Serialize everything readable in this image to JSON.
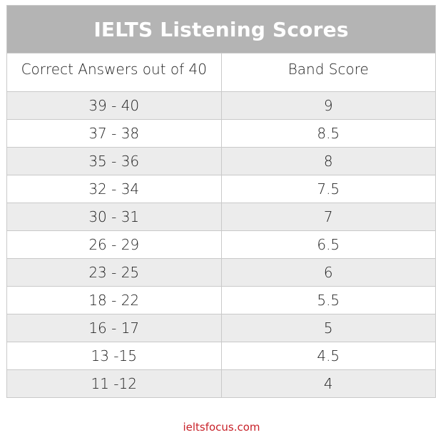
{
  "title": "IELTS Listening Scores",
  "columns": [
    "Correct Answers out of 40",
    "Band Score"
  ],
  "rows": [
    {
      "answers": "39 - 40",
      "band": "9"
    },
    {
      "answers": "37 - 38",
      "band": "8.5"
    },
    {
      "answers": "35 - 36",
      "band": "8"
    },
    {
      "answers": "32 - 34",
      "band": "7.5"
    },
    {
      "answers": "30 - 31",
      "band": "7"
    },
    {
      "answers": "26 - 29",
      "band": "6.5"
    },
    {
      "answers": "23 - 25",
      "band": "6"
    },
    {
      "answers": "18 - 22",
      "band": "5.5"
    },
    {
      "answers": "16 - 17",
      "band": "5"
    },
    {
      "answers": "13 -15",
      "band": "4.5"
    },
    {
      "answers": "11 -12",
      "band": "4"
    }
  ],
  "footer": "ieltsfocus.com",
  "colors": {
    "title_bg": "#b4b4b4",
    "shaded_row": "#ececec",
    "footer_text": "#c8222a"
  }
}
